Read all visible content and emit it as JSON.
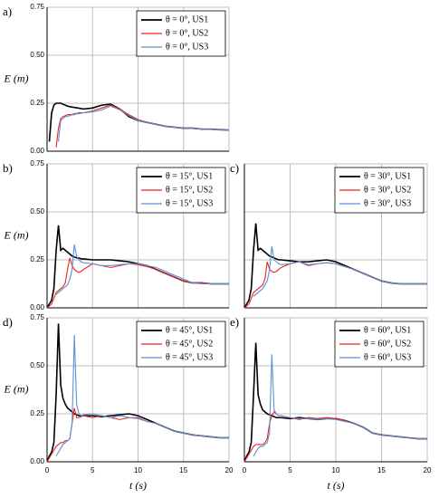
{
  "chart_data": [
    {
      "type": "line",
      "panel": "a)",
      "ylabel": "E (m)",
      "x": [
        0,
        0.25,
        0.5,
        0.75,
        1,
        1.25,
        1.5,
        1.75,
        2,
        2.25,
        2.5,
        2.75,
        3,
        3.25,
        3.5,
        3.75,
        4,
        5,
        6,
        7,
        8,
        9,
        10,
        11,
        12,
        13,
        14,
        15,
        16,
        17,
        18,
        19,
        20
      ],
      "series": [
        {
          "name": "θ = 0°, US1",
          "color": "#000000",
          "values": [
            null,
            0.05,
            0.2,
            0.24,
            0.25,
            0.25,
            0.25,
            0.245,
            0.24,
            0.235,
            0.232,
            0.23,
            0.228,
            0.226,
            0.224,
            0.222,
            0.22,
            0.225,
            0.24,
            0.245,
            0.22,
            0.18,
            0.16,
            0.15,
            0.14,
            0.13,
            0.125,
            0.12,
            0.12,
            0.115,
            0.115,
            0.112,
            0.11
          ]
        },
        {
          "name": "θ = 0°, US2",
          "color": "#e8261f",
          "values": [
            null,
            null,
            null,
            null,
            0.02,
            0.12,
            0.17,
            0.18,
            0.185,
            0.19,
            0.19,
            0.192,
            0.195,
            0.197,
            0.2,
            0.2,
            0.2,
            0.21,
            0.225,
            0.24,
            0.22,
            0.19,
            0.165,
            0.15,
            0.14,
            0.13,
            0.125,
            0.12,
            0.12,
            0.115,
            0.115,
            0.112,
            0.11
          ]
        },
        {
          "name": "θ = 0°, US3",
          "color": "#5b8fd6",
          "values": [
            null,
            null,
            null,
            null,
            null,
            0.05,
            0.16,
            0.17,
            0.18,
            0.182,
            0.185,
            0.19,
            0.19,
            0.195,
            0.195,
            0.198,
            0.2,
            0.205,
            0.215,
            0.235,
            0.215,
            0.185,
            0.16,
            0.15,
            0.14,
            0.13,
            0.125,
            0.12,
            0.118,
            0.115,
            0.113,
            0.11,
            0.11
          ]
        }
      ],
      "xlim": [
        0,
        20
      ],
      "xticks": [
        0,
        5,
        10,
        15,
        20
      ],
      "ylim": [
        0,
        0.75
      ],
      "yticks": [
        {
          "value": 0,
          "label": "0.00"
        },
        {
          "value": 0.25,
          "label": "0.25"
        },
        {
          "value": 0.5,
          "label": "0.50"
        },
        {
          "value": 0.75,
          "label": "0.75"
        }
      ],
      "tick_labels": {
        "x": false,
        "y": true
      },
      "grid": true,
      "legend": "upper right"
    },
    {
      "type": "line",
      "panel": "b)",
      "ylabel": "E (m)",
      "x": [
        0,
        0.25,
        0.5,
        0.75,
        1,
        1.25,
        1.5,
        1.75,
        2,
        2.25,
        2.5,
        2.75,
        3,
        3.25,
        3.5,
        3.75,
        4,
        5,
        6,
        7,
        8,
        9,
        10,
        11,
        12,
        13,
        14,
        15,
        16,
        17,
        18,
        19,
        20
      ],
      "series": [
        {
          "name": "θ = 15°, US1",
          "color": "#000000",
          "values": [
            0,
            0.02,
            0.04,
            0.1,
            0.3,
            0.43,
            0.3,
            0.31,
            0.3,
            0.29,
            0.28,
            0.27,
            0.265,
            0.26,
            0.26,
            0.255,
            0.255,
            0.25,
            0.25,
            0.25,
            0.245,
            0.24,
            0.23,
            0.22,
            0.2,
            0.18,
            0.16,
            0.14,
            0.13,
            0.13,
            0.125,
            0.125,
            0.125
          ]
        },
        {
          "name": "θ = 15°, US2",
          "color": "#e8261f",
          "values": [
            0,
            0.01,
            0.02,
            0.05,
            0.08,
            0.09,
            0.1,
            0.11,
            0.13,
            0.2,
            0.26,
            0.22,
            0.2,
            0.19,
            0.185,
            0.19,
            0.2,
            0.23,
            0.22,
            0.21,
            0.22,
            0.23,
            0.225,
            0.215,
            0.2,
            0.18,
            0.16,
            0.14,
            0.13,
            0.13,
            0.125,
            0.125,
            0.125
          ]
        },
        {
          "name": "θ = 15°, US3",
          "color": "#5b8fd6",
          "values": [
            null,
            null,
            null,
            null,
            0.07,
            0.08,
            0.09,
            0.1,
            0.11,
            0.12,
            0.15,
            0.2,
            0.33,
            0.27,
            0.25,
            0.24,
            0.235,
            0.23,
            0.22,
            0.22,
            0.225,
            0.23,
            0.23,
            0.22,
            0.21,
            0.19,
            0.17,
            0.15,
            0.13,
            0.125,
            0.125,
            0.125,
            0.125
          ]
        }
      ],
      "xlim": [
        0,
        20
      ],
      "xticks": [
        0,
        5,
        10,
        15,
        20
      ],
      "ylim": [
        0,
        0.75
      ],
      "yticks": [
        {
          "value": 0,
          "label": "0.00"
        },
        {
          "value": 0.25,
          "label": "0.25"
        },
        {
          "value": 0.5,
          "label": "0.50"
        },
        {
          "value": 0.75,
          "label": "0.75"
        }
      ],
      "tick_labels": {
        "x": false,
        "y": true
      },
      "grid": true,
      "legend": "upper right"
    },
    {
      "type": "line",
      "panel": "c)",
      "x": [
        0,
        0.25,
        0.5,
        0.75,
        1,
        1.25,
        1.5,
        1.75,
        2,
        2.25,
        2.5,
        2.75,
        3,
        3.25,
        3.5,
        3.75,
        4,
        5,
        6,
        7,
        8,
        9,
        10,
        11,
        12,
        13,
        14,
        15,
        16,
        17,
        18,
        19,
        20
      ],
      "series": [
        {
          "name": "θ = 30°, US1",
          "color": "#000000",
          "values": [
            0,
            0.02,
            0.04,
            0.1,
            0.3,
            0.44,
            0.3,
            0.31,
            0.3,
            0.29,
            0.28,
            0.27,
            0.265,
            0.26,
            0.255,
            0.25,
            0.25,
            0.245,
            0.24,
            0.24,
            0.245,
            0.25,
            0.24,
            0.22,
            0.2,
            0.18,
            0.16,
            0.14,
            0.13,
            0.125,
            0.125,
            0.125,
            0.125
          ]
        },
        {
          "name": "θ = 30°, US2",
          "color": "#e8261f",
          "values": [
            0,
            0.01,
            0.02,
            0.05,
            0.08,
            0.09,
            0.1,
            0.11,
            0.12,
            0.15,
            0.24,
            0.2,
            0.19,
            0.185,
            0.19,
            0.2,
            0.21,
            0.23,
            0.24,
            0.22,
            0.23,
            0.235,
            0.23,
            0.215,
            0.2,
            0.18,
            0.16,
            0.14,
            0.13,
            0.125,
            0.125,
            0.125,
            0.125
          ]
        },
        {
          "name": "θ = 30°, US3",
          "color": "#5b8fd6",
          "values": [
            null,
            null,
            null,
            null,
            0.06,
            0.07,
            0.08,
            0.09,
            0.1,
            0.12,
            0.14,
            0.2,
            0.32,
            0.25,
            0.24,
            0.23,
            0.225,
            0.23,
            0.24,
            0.225,
            0.23,
            0.235,
            0.23,
            0.215,
            0.2,
            0.18,
            0.16,
            0.14,
            0.13,
            0.125,
            0.125,
            0.125,
            0.125
          ]
        }
      ],
      "xlim": [
        0,
        20
      ],
      "xticks": [
        0,
        5,
        10,
        15,
        20
      ],
      "ylim": [
        0,
        0.75
      ],
      "yticks": [
        0,
        0.25,
        0.5,
        0.75
      ],
      "tick_labels": {
        "x": false,
        "y": false
      },
      "grid": true,
      "legend": "upper right"
    },
    {
      "type": "line",
      "panel": "d)",
      "ylabel": "E (m)",
      "xlabel": "t (s)",
      "x": [
        0,
        0.25,
        0.5,
        0.75,
        1,
        1.25,
        1.5,
        1.75,
        2,
        2.25,
        2.5,
        2.75,
        3,
        3.25,
        3.5,
        3.75,
        4,
        5,
        6,
        7,
        8,
        9,
        10,
        11,
        12,
        13,
        14,
        15,
        16,
        17,
        18,
        19,
        20
      ],
      "series": [
        {
          "name": "θ = 45°, US1",
          "color": "#000000",
          "values": [
            0,
            0.03,
            0.05,
            0.1,
            0.35,
            0.72,
            0.4,
            0.33,
            0.3,
            0.28,
            0.27,
            0.26,
            0.25,
            0.245,
            0.24,
            0.24,
            0.24,
            0.24,
            0.235,
            0.24,
            0.245,
            0.25,
            0.24,
            0.22,
            0.2,
            0.18,
            0.16,
            0.15,
            0.14,
            0.135,
            0.13,
            0.125,
            0.125
          ]
        },
        {
          "name": "θ = 45°, US2",
          "color": "#e8261f",
          "values": [
            0,
            0.02,
            0.04,
            0.06,
            0.08,
            0.09,
            0.1,
            0.1,
            0.11,
            0.11,
            0.12,
            0.2,
            0.28,
            0.23,
            0.23,
            0.235,
            0.24,
            0.23,
            0.24,
            0.23,
            0.22,
            0.23,
            0.23,
            0.21,
            0.2,
            0.18,
            0.16,
            0.15,
            0.14,
            0.135,
            0.13,
            0.125,
            0.125
          ]
        },
        {
          "name": "θ = 45°, US3",
          "color": "#5b8fd6",
          "values": [
            null,
            null,
            null,
            null,
            0.03,
            0.05,
            0.07,
            0.09,
            0.1,
            0.11,
            0.12,
            0.2,
            0.66,
            0.3,
            0.25,
            0.24,
            0.245,
            0.25,
            0.24,
            0.23,
            0.24,
            0.23,
            0.225,
            0.21,
            0.2,
            0.18,
            0.16,
            0.15,
            0.14,
            0.135,
            0.13,
            0.125,
            0.125
          ]
        }
      ],
      "xlim": [
        0,
        20
      ],
      "xticks": [
        0,
        5,
        10,
        15,
        20
      ],
      "ylim": [
        0,
        0.75
      ],
      "yticks": [
        {
          "value": 0,
          "label": "0.00"
        },
        {
          "value": 0.25,
          "label": "0.25"
        },
        {
          "value": 0.5,
          "label": "0.50"
        },
        {
          "value": 0.75,
          "label": "0.75"
        }
      ],
      "tick_labels": {
        "x": true,
        "y": true
      },
      "grid": true,
      "legend": "upper right"
    },
    {
      "type": "line",
      "panel": "e)",
      "xlabel": "t (s)",
      "x": [
        0,
        0.25,
        0.5,
        0.75,
        1,
        1.25,
        1.5,
        1.75,
        2,
        2.25,
        2.5,
        2.75,
        3,
        3.25,
        3.5,
        3.75,
        4,
        5,
        6,
        7,
        8,
        9,
        10,
        11,
        12,
        13,
        14,
        15,
        16,
        17,
        18,
        19,
        20
      ],
      "series": [
        {
          "name": "θ = 60°, US1",
          "color": "#000000",
          "values": [
            0,
            0.03,
            0.05,
            0.1,
            0.35,
            0.62,
            0.35,
            0.3,
            0.27,
            0.26,
            0.25,
            0.245,
            0.24,
            0.235,
            0.23,
            0.23,
            0.23,
            0.225,
            0.23,
            0.225,
            0.22,
            0.225,
            0.225,
            0.215,
            0.2,
            0.18,
            0.15,
            0.14,
            0.135,
            0.13,
            0.125,
            0.12,
            0.12
          ]
        },
        {
          "name": "θ = 60°, US2",
          "color": "#e8261f",
          "values": [
            0,
            0.02,
            0.04,
            0.06,
            0.08,
            0.09,
            0.09,
            0.09,
            0.09,
            0.1,
            0.12,
            0.2,
            0.24,
            0.26,
            0.25,
            0.24,
            0.24,
            0.23,
            0.22,
            0.23,
            0.225,
            0.23,
            0.225,
            0.215,
            0.2,
            0.18,
            0.15,
            0.14,
            0.135,
            0.13,
            0.125,
            0.12,
            0.12
          ]
        },
        {
          "name": "θ = 60°, US3",
          "color": "#5b8fd6",
          "values": [
            null,
            null,
            null,
            null,
            0.03,
            0.05,
            0.07,
            0.08,
            0.08,
            0.09,
            0.1,
            0.15,
            0.56,
            0.27,
            0.25,
            0.24,
            0.24,
            0.23,
            0.225,
            0.225,
            0.22,
            0.225,
            0.22,
            0.21,
            0.2,
            0.18,
            0.15,
            0.14,
            0.135,
            0.13,
            0.125,
            0.12,
            0.12
          ]
        }
      ],
      "xlim": [
        0,
        20
      ],
      "xticks": [
        0,
        5,
        10,
        15,
        20
      ],
      "ylim": [
        0,
        0.75
      ],
      "yticks": [
        0,
        0.25,
        0.5,
        0.75
      ],
      "tick_labels": {
        "x": true,
        "y": false
      },
      "grid": true,
      "legend": "upper right"
    }
  ]
}
